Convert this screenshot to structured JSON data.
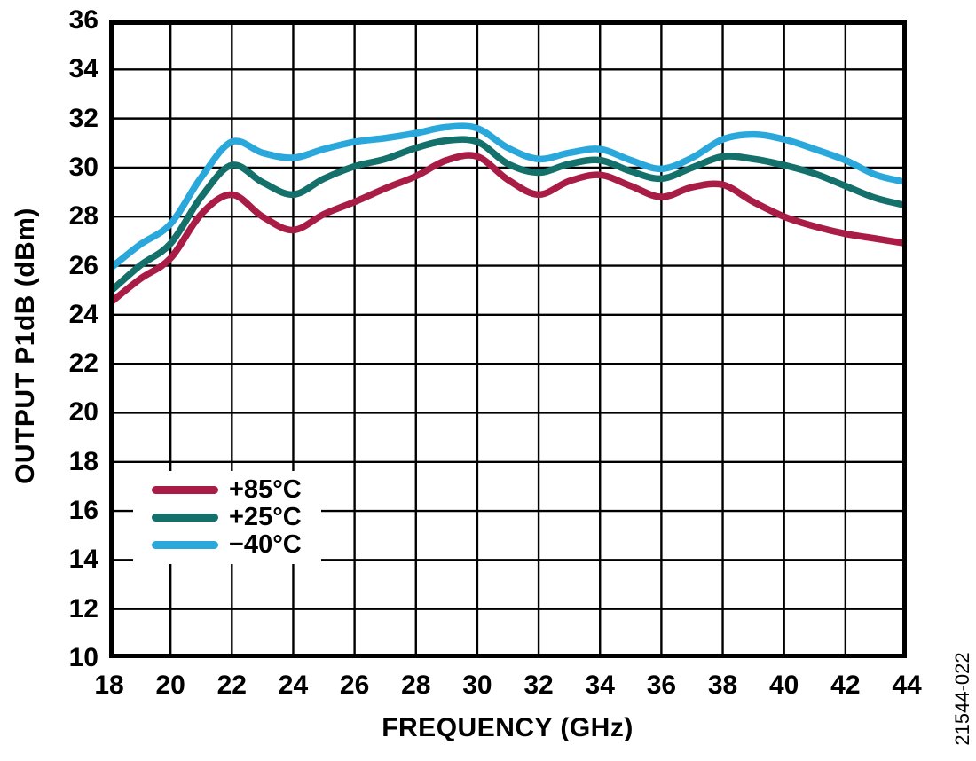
{
  "figure": {
    "id_label": "21544-022",
    "background_color": "#ffffff",
    "text_color": "#000000"
  },
  "chart_data": {
    "type": "line",
    "title": "",
    "xlabel": "FREQUENCY (GHz)",
    "ylabel": "OUTPUT P1dB (dBm)",
    "xlim": [
      18,
      44
    ],
    "ylim": [
      10,
      36
    ],
    "x_ticks": [
      18,
      20,
      22,
      24,
      26,
      28,
      30,
      32,
      34,
      36,
      38,
      40,
      42,
      44
    ],
    "y_ticks": [
      10,
      12,
      14,
      16,
      18,
      20,
      22,
      24,
      26,
      28,
      30,
      32,
      34,
      36
    ],
    "grid": true,
    "grid_color": "#000000",
    "axis_color": "#000000",
    "legend_position": "inside-lower-left",
    "x": [
      18,
      19,
      20,
      21,
      22,
      23,
      24,
      25,
      26,
      27,
      28,
      29,
      30,
      31,
      32,
      33,
      34,
      35,
      36,
      37,
      38,
      39,
      40,
      41,
      42,
      43,
      44
    ],
    "series": [
      {
        "name": "+85°C",
        "color": "#A81C45",
        "values": [
          24.45,
          25.45,
          26.3,
          28.1,
          28.9,
          28.0,
          27.45,
          28.1,
          28.6,
          29.15,
          29.65,
          30.3,
          30.45,
          29.5,
          28.9,
          29.45,
          29.7,
          29.25,
          28.8,
          29.2,
          29.3,
          28.6,
          28.0,
          27.6,
          27.3,
          27.1,
          26.9
        ]
      },
      {
        "name": "+25°C",
        "color": "#14706A",
        "values": [
          24.9,
          26.0,
          26.9,
          28.8,
          30.1,
          29.4,
          28.9,
          29.55,
          30.05,
          30.35,
          30.8,
          31.1,
          31.05,
          30.15,
          29.8,
          30.15,
          30.3,
          29.85,
          29.55,
          30.0,
          30.45,
          30.35,
          30.1,
          29.75,
          29.25,
          28.75,
          28.45
        ]
      },
      {
        "name": "−40°C",
        "color": "#2BA8DB",
        "values": [
          25.85,
          26.85,
          27.7,
          29.6,
          31.05,
          30.6,
          30.4,
          30.75,
          31.05,
          31.2,
          31.4,
          31.65,
          31.6,
          30.8,
          30.35,
          30.6,
          30.75,
          30.3,
          29.95,
          30.4,
          31.15,
          31.35,
          31.15,
          30.75,
          30.3,
          29.7,
          29.4
        ]
      }
    ]
  }
}
